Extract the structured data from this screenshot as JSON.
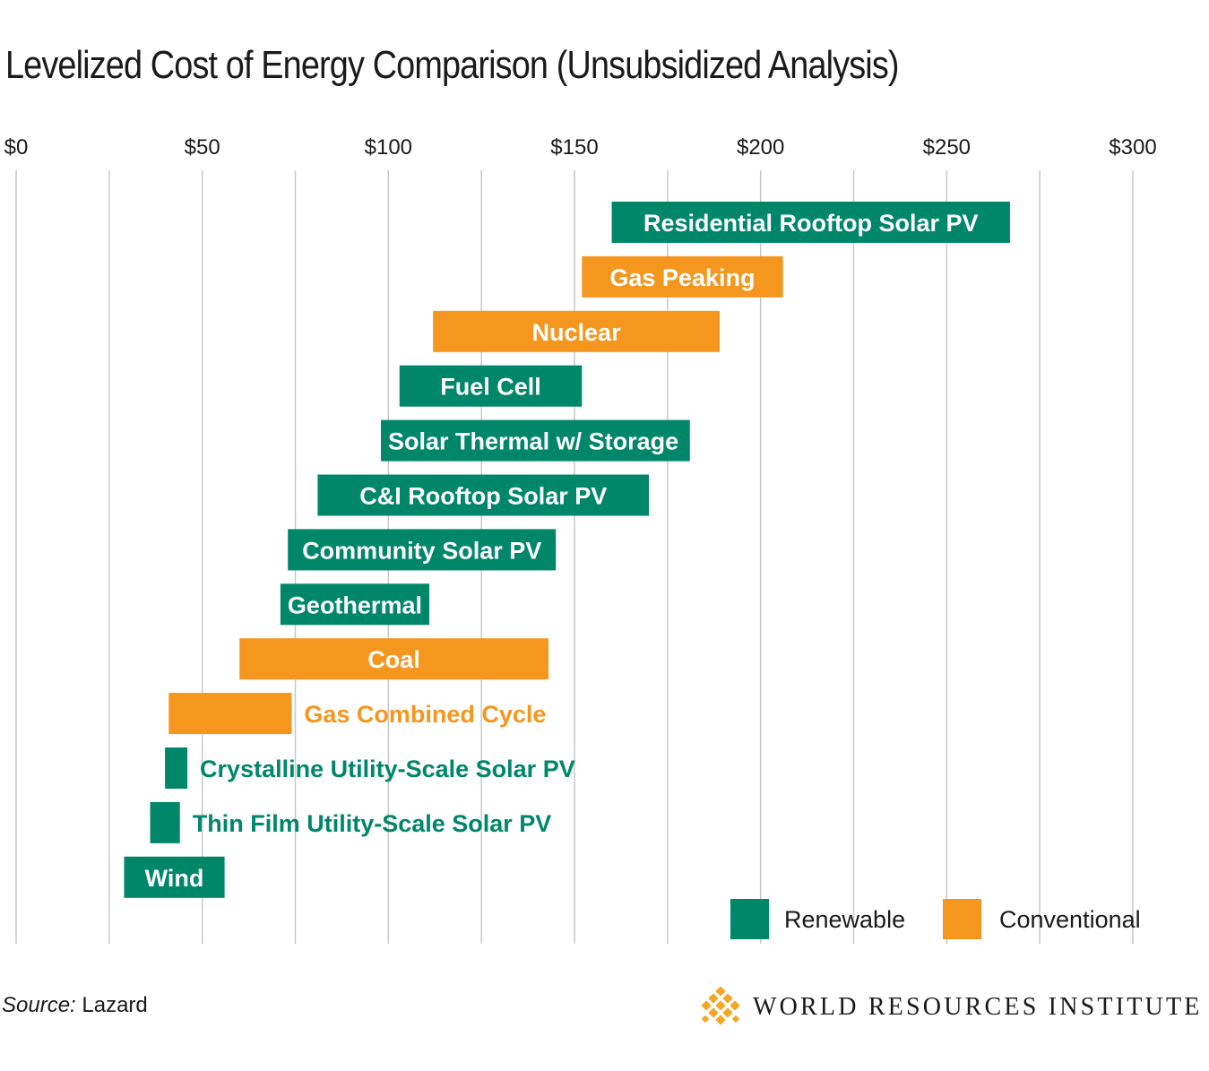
{
  "chart_data": {
    "type": "bar",
    "orientation": "horizontal-range",
    "title": "Levelized Cost of Energy Comparison (Unsubsidized Analysis)",
    "x_ticks": [
      "$0",
      "$50",
      "$100",
      "$150",
      "$200",
      "$250",
      "$300"
    ],
    "xlim": [
      0,
      300
    ],
    "grid": true,
    "legend_position": "bottom-right",
    "legend": [
      {
        "name": "Renewable",
        "color": "#00876a"
      },
      {
        "name": "Conventional",
        "color": "#f5961f"
      }
    ],
    "bars": [
      {
        "label": "Residential Rooftop Solar PV",
        "low": 160,
        "high": 267,
        "group": "Renewable"
      },
      {
        "label": "Gas Peaking",
        "low": 152,
        "high": 206,
        "group": "Conventional"
      },
      {
        "label": "Nuclear",
        "low": 112,
        "high": 189,
        "group": "Conventional"
      },
      {
        "label": "Fuel Cell",
        "low": 103,
        "high": 152,
        "group": "Renewable"
      },
      {
        "label": "Solar Thermal w/ Storage",
        "low": 98,
        "high": 181,
        "group": "Renewable"
      },
      {
        "label": "C&I Rooftop Solar PV",
        "low": 81,
        "high": 170,
        "group": "Renewable"
      },
      {
        "label": "Community Solar PV",
        "low": 73,
        "high": 145,
        "group": "Renewable"
      },
      {
        "label": "Geothermal",
        "low": 71,
        "high": 111,
        "group": "Renewable"
      },
      {
        "label": "Coal",
        "low": 60,
        "high": 143,
        "group": "Conventional"
      },
      {
        "label": "Gas Combined Cycle",
        "low": 41,
        "high": 74,
        "group": "Conventional"
      },
      {
        "label": "Crystalline Utility-Scale Solar PV",
        "low": 40,
        "high": 46,
        "group": "Renewable"
      },
      {
        "label": "Thin Film Utility-Scale Solar PV",
        "low": 36,
        "high": 44,
        "group": "Renewable"
      },
      {
        "label": "Wind",
        "low": 29,
        "high": 56,
        "group": "Renewable"
      }
    ]
  },
  "footer": {
    "source_label": "Source:",
    "source_value": " Lazard",
    "organization": "WORLD RESOURCES INSTITUTE"
  }
}
